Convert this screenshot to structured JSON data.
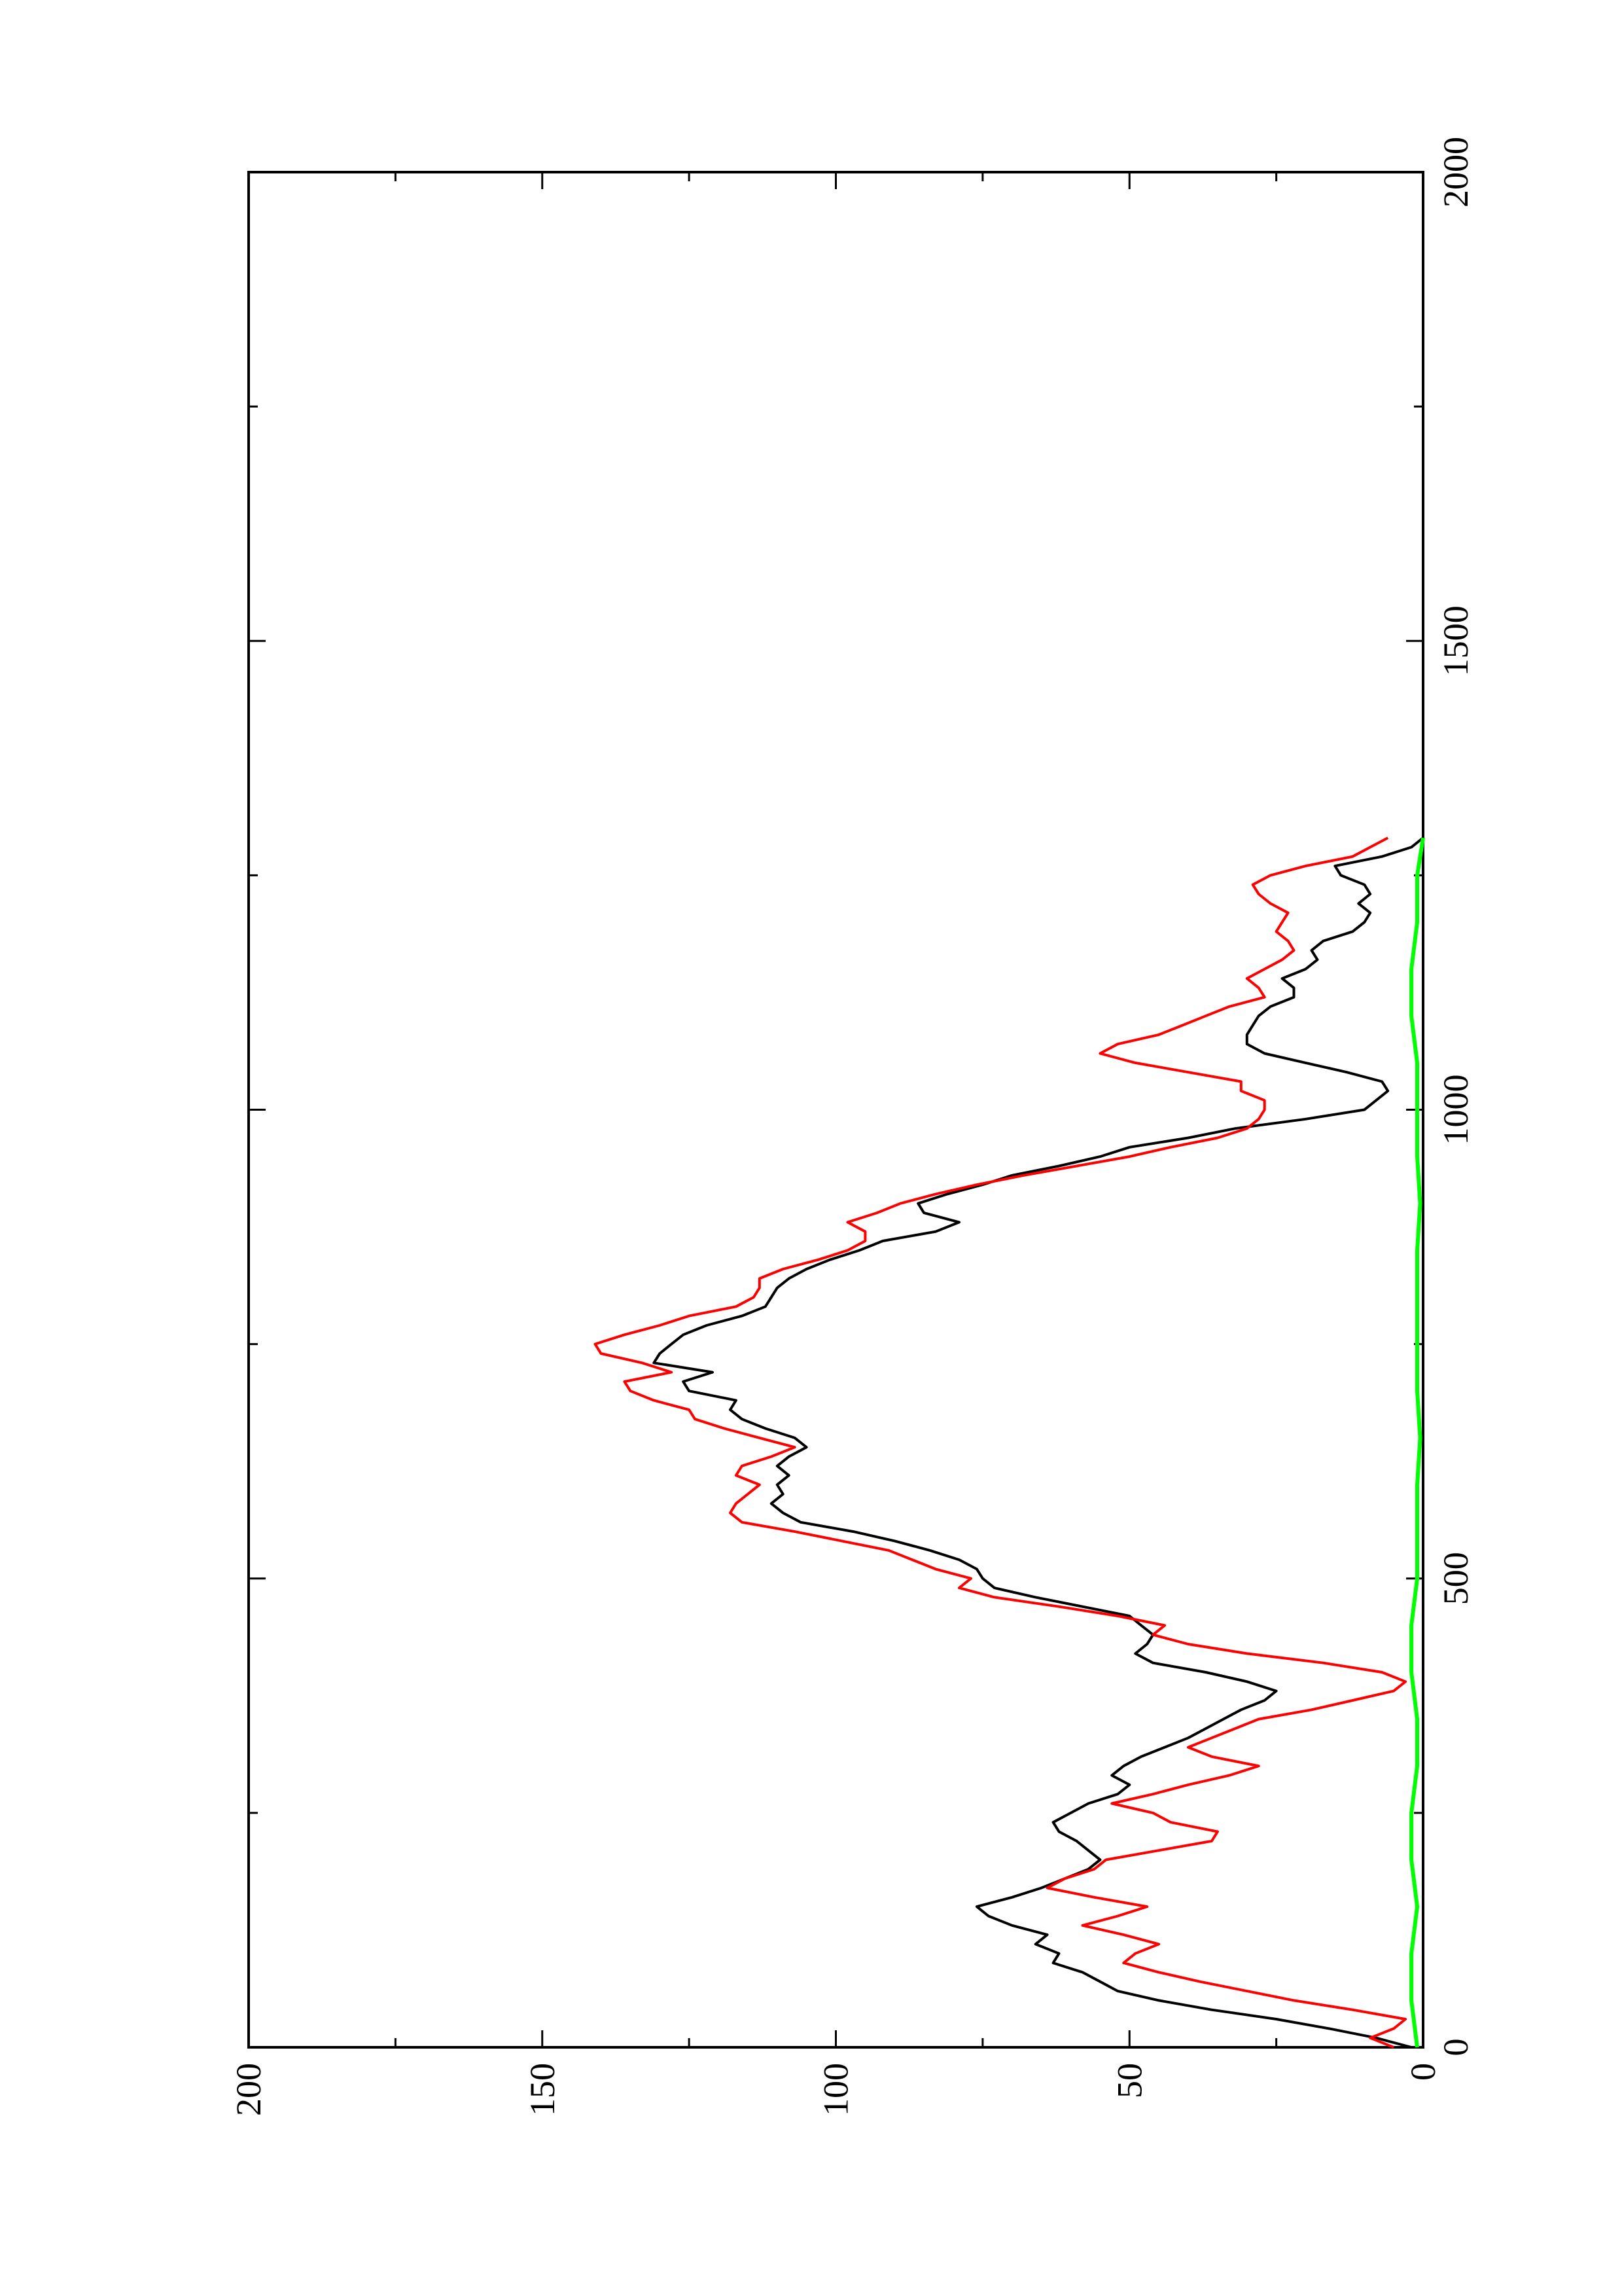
{
  "chart_data": {
    "type": "line",
    "title": "",
    "xlabel": "",
    "ylabel": "",
    "xlim": [
      0,
      2000
    ],
    "ylim": [
      0,
      200
    ],
    "x_ticks": [
      0,
      500,
      1000,
      1500,
      2000
    ],
    "y_ticks": [
      0,
      50,
      100,
      150,
      200
    ],
    "x_tick_labels": [
      "0",
      "500",
      "1000",
      "1500",
      "2000"
    ],
    "y_tick_labels": [
      "0",
      "50",
      "100",
      "150",
      "200"
    ],
    "grid": false,
    "legend": "none",
    "orientation": "rotated 90 degrees clockwise",
    "series": [
      {
        "color": "#000000",
        "x": [
          0,
          10,
          20,
          30,
          40,
          50,
          60,
          70,
          80,
          90,
          100,
          110,
          120,
          130,
          140,
          150,
          160,
          170,
          180,
          190,
          200,
          210,
          220,
          230,
          240,
          250,
          260,
          270,
          280,
          290,
          300,
          310,
          320,
          330,
          340,
          350,
          360,
          370,
          380,
          390,
          400,
          410,
          420,
          430,
          440,
          450,
          460,
          470,
          480,
          490,
          500,
          510,
          520,
          530,
          540,
          550,
          560,
          570,
          580,
          590,
          600,
          610,
          620,
          630,
          640,
          650,
          660,
          670,
          680,
          690,
          700,
          710,
          720,
          730,
          740,
          750,
          760,
          770,
          780,
          790,
          800,
          810,
          820,
          830,
          840,
          850,
          860,
          870,
          880,
          890,
          900,
          910,
          920,
          930,
          940,
          950,
          960,
          970,
          980,
          990,
          1000,
          1010,
          1020,
          1030,
          1040,
          1050,
          1060,
          1070,
          1080,
          1090,
          1100,
          1110,
          1120,
          1130,
          1140,
          1150,
          1160,
          1170,
          1180,
          1190,
          1200,
          1210,
          1220,
          1230,
          1240,
          1250,
          1260,
          1270,
          1280,
          1290
        ],
        "y": [
          2,
          8,
          16,
          25,
          36,
          45,
          52,
          55,
          58,
          63,
          62,
          66,
          64,
          70,
          74,
          76,
          70,
          65,
          61,
          57,
          55,
          57,
          59,
          62,
          63,
          60,
          57,
          52,
          50,
          53,
          51,
          48,
          44,
          40,
          37,
          34,
          31,
          27,
          25,
          30,
          37,
          46,
          49,
          47,
          46,
          48,
          50,
          58,
          66,
          73,
          75,
          76,
          79,
          84,
          90,
          97,
          106,
          109,
          111,
          109,
          110,
          108,
          110,
          108,
          105,
          107,
          112,
          116,
          118,
          117,
          125,
          126,
          121,
          131,
          130,
          128,
          126,
          122,
          116,
          112,
          111,
          110,
          108,
          105,
          101,
          96,
          92,
          83,
          79,
          85,
          86,
          81,
          75,
          70,
          62,
          55,
          50,
          40,
          32,
          20,
          10,
          8,
          6,
          7,
          13,
          20,
          27,
          30,
          30,
          29,
          28,
          26,
          22,
          22,
          24,
          20,
          18,
          19,
          17,
          12,
          10,
          9,
          11,
          9,
          10,
          14,
          15,
          7,
          2,
          0
        ]
      },
      {
        "color": "#ff0000",
        "x": [
          0,
          10,
          20,
          30,
          40,
          50,
          60,
          70,
          80,
          90,
          100,
          110,
          120,
          130,
          140,
          150,
          160,
          170,
          180,
          190,
          200,
          210,
          220,
          230,
          240,
          250,
          260,
          270,
          280,
          290,
          300,
          310,
          320,
          330,
          340,
          350,
          360,
          370,
          380,
          390,
          400,
          410,
          420,
          430,
          440,
          450,
          460,
          470,
          480,
          490,
          500,
          510,
          520,
          530,
          540,
          550,
          560,
          570,
          580,
          590,
          600,
          610,
          620,
          630,
          640,
          650,
          660,
          670,
          680,
          690,
          700,
          710,
          720,
          730,
          740,
          750,
          760,
          770,
          780,
          790,
          800,
          810,
          820,
          830,
          840,
          850,
          860,
          870,
          880,
          890,
          900,
          910,
          920,
          930,
          940,
          950,
          960,
          970,
          980,
          990,
          1000,
          1010,
          1020,
          1030,
          1040,
          1050,
          1060,
          1070,
          1080,
          1090,
          1100,
          1110,
          1120,
          1130,
          1140,
          1150,
          1160,
          1170,
          1180,
          1190,
          1200,
          1210,
          1220,
          1230,
          1240,
          1250,
          1260,
          1270,
          1280,
          1290
        ],
        "y": [
          5,
          9,
          5,
          3,
          12,
          22,
          30,
          38,
          45,
          51,
          49,
          45,
          51,
          58,
          52,
          47,
          56,
          64,
          61,
          56,
          54,
          45,
          36,
          35,
          43,
          46,
          53,
          46,
          40,
          33,
          28,
          36,
          40,
          36,
          32,
          28,
          19,
          12,
          5,
          3,
          7,
          17,
          30,
          40,
          46,
          44,
          52,
          62,
          73,
          79,
          77,
          83,
          87,
          91,
          99,
          107,
          116,
          118,
          117,
          115,
          113,
          117,
          116,
          111,
          107,
          113,
          119,
          124,
          125,
          131,
          135,
          136,
          128,
          133,
          140,
          141,
          136,
          130,
          125,
          117,
          114,
          113,
          113,
          109,
          103,
          98,
          95,
          95,
          98,
          93,
          89,
          83,
          76,
          68,
          59,
          50,
          43,
          35,
          30,
          28,
          27,
          27,
          31,
          31,
          40,
          49,
          55,
          52,
          45,
          41,
          37,
          33,
          27,
          28,
          30,
          27,
          24,
          22,
          23,
          25,
          24,
          23,
          26,
          28,
          29,
          26,
          20,
          12,
          9,
          6
        ]
      },
      {
        "color": "#00ff00",
        "x": [
          0,
          50,
          100,
          150,
          200,
          250,
          300,
          350,
          400,
          450,
          500,
          550,
          600,
          650,
          700,
          750,
          800,
          850,
          900,
          950,
          1000,
          1050,
          1100,
          1150,
          1200,
          1250,
          1290
        ],
        "y": [
          1,
          2,
          2,
          1,
          2,
          2,
          1,
          1,
          2,
          2,
          1,
          1,
          1,
          0.5,
          1,
          1,
          1,
          1,
          0.5,
          1,
          1,
          1,
          2,
          2,
          1,
          1,
          0
        ]
      }
    ]
  }
}
